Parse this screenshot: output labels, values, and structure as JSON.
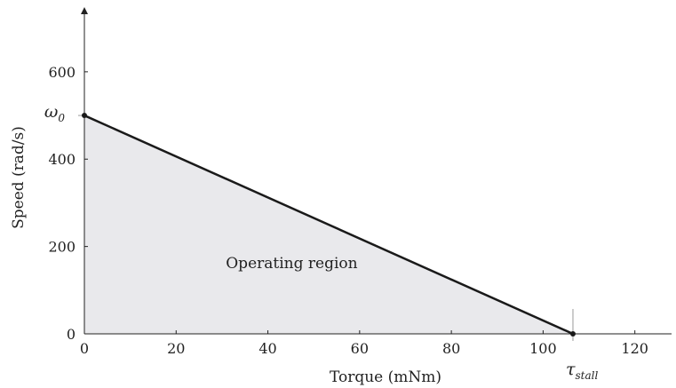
{
  "chart_data": {
    "type": "area",
    "title": "",
    "xlabel": "Torque (mNm)",
    "ylabel": "Speed (rad/s)",
    "xlim": [
      0,
      128
    ],
    "ylim": [
      0,
      740
    ],
    "xticks": [
      0,
      20,
      40,
      60,
      80,
      100,
      120
    ],
    "yticks": [
      0,
      200,
      400,
      600
    ],
    "series": [
      {
        "x": [
          0,
          106.5
        ],
        "y": [
          500,
          0
        ]
      }
    ],
    "points": [
      {
        "x": 0,
        "y": 500
      },
      {
        "x": 106.5,
        "y": 0
      }
    ],
    "region_label": {
      "text": "Operating region",
      "x": 32,
      "y": 150
    },
    "omega0": {
      "symbol": "ω",
      "subscript": "0",
      "value": 500
    },
    "tau_stall": {
      "symbol": "τ",
      "subscript": "stall",
      "value": 106.5
    },
    "colors": {
      "fill": "#e9e9ec",
      "line": "#1a1a1a",
      "axis": "#222222"
    },
    "grid": false,
    "legend": "none"
  }
}
